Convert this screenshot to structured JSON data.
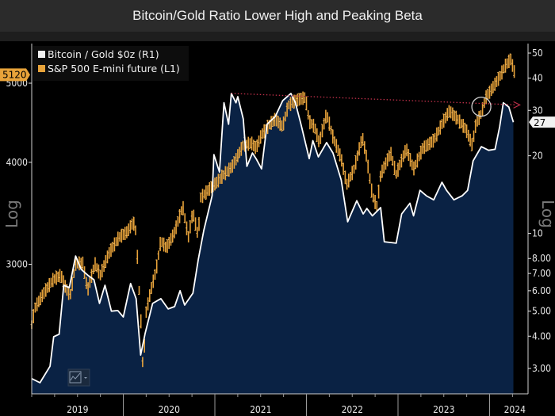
{
  "title": "Bitcoin/Gold Ratio Lower High and Peaking Beta",
  "chart_data": {
    "type": "line",
    "title": "Bitcoin/Gold Ratio Lower High and Peaking Beta",
    "xlabel": "",
    "x_ticks": [
      "2019",
      "2020",
      "2021",
      "2022",
      "2023",
      "2024"
    ],
    "xlim": [
      2019.0,
      2024.33
    ],
    "left_axis": {
      "label": "Log",
      "scale": "log",
      "ticks": [
        "3000",
        "4000",
        "5000"
      ],
      "tick_values": [
        3000,
        4000,
        5000
      ],
      "last_value_tag": "5120"
    },
    "right_axis": {
      "label": "Log",
      "scale": "log",
      "ticks": [
        "3.00",
        "4.00",
        "5.00",
        "6.00",
        "7.00",
        "8.00",
        "10",
        "20",
        "30",
        "40",
        "50"
      ],
      "tick_values": [
        3,
        4,
        5,
        6,
        7,
        8,
        10,
        20,
        30,
        40,
        50
      ],
      "last_value_tag": "27"
    },
    "legend": {
      "position": "top-left",
      "entries": [
        {
          "label": "Bitcoin / Gold $0z (R1)",
          "color": "#ffffff"
        },
        {
          "label": "S&P 500 E-mini future (L1)",
          "color": "#e8a33a"
        }
      ]
    },
    "series": [
      {
        "name": "Bitcoin / Gold $0z (R1)",
        "axis": "right",
        "color": "#ffffff",
        "fill": "#0a2244",
        "points": [
          [
            2019.0,
            2.74
          ],
          [
            2019.09,
            2.64
          ],
          [
            2019.2,
            3.06
          ],
          [
            2019.24,
            3.98
          ],
          [
            2019.3,
            4.07
          ],
          [
            2019.35,
            6.3
          ],
          [
            2019.41,
            6.17
          ],
          [
            2019.48,
            8.18
          ],
          [
            2019.54,
            7.26
          ],
          [
            2019.61,
            6.9
          ],
          [
            2019.68,
            6.62
          ],
          [
            2019.74,
            5.36
          ],
          [
            2019.8,
            6.3
          ],
          [
            2019.87,
            5.0
          ],
          [
            2019.94,
            5.03
          ],
          [
            2020.0,
            4.75
          ],
          [
            2020.08,
            6.4
          ],
          [
            2020.14,
            5.59
          ],
          [
            2020.19,
            3.38
          ],
          [
            2020.24,
            4.12
          ],
          [
            2020.32,
            5.36
          ],
          [
            2020.41,
            5.59
          ],
          [
            2020.49,
            5.1
          ],
          [
            2020.56,
            5.21
          ],
          [
            2020.62,
            6.0
          ],
          [
            2020.67,
            5.28
          ],
          [
            2020.76,
            5.87
          ],
          [
            2020.82,
            7.96
          ],
          [
            2020.88,
            10.3
          ],
          [
            2020.97,
            14.0
          ],
          [
            2020.99,
            20.2
          ],
          [
            2021.05,
            17.3
          ],
          [
            2021.1,
            32.1
          ],
          [
            2021.15,
            26.5
          ],
          [
            2021.18,
            34.9
          ],
          [
            2021.23,
            32.1
          ],
          [
            2021.25,
            33.9
          ],
          [
            2021.31,
            27.8
          ],
          [
            2021.35,
            18.2
          ],
          [
            2021.41,
            20.5
          ],
          [
            2021.45,
            19.5
          ],
          [
            2021.51,
            17.8
          ],
          [
            2021.57,
            26.5
          ],
          [
            2021.66,
            28.4
          ],
          [
            2021.74,
            32.7
          ],
          [
            2021.83,
            34.9
          ],
          [
            2021.88,
            32.1
          ],
          [
            2021.94,
            26.5
          ],
          [
            2022.03,
            19.5
          ],
          [
            2022.07,
            22.9
          ],
          [
            2022.13,
            19.8
          ],
          [
            2022.22,
            22.5
          ],
          [
            2022.29,
            20.5
          ],
          [
            2022.38,
            16.1
          ],
          [
            2022.45,
            11.1
          ],
          [
            2022.55,
            13.4
          ],
          [
            2022.62,
            11.9
          ],
          [
            2022.66,
            12.5
          ],
          [
            2022.72,
            11.7
          ],
          [
            2022.81,
            12.6
          ],
          [
            2022.85,
            9.29
          ],
          [
            2022.98,
            9.17
          ],
          [
            2023.04,
            11.9
          ],
          [
            2023.13,
            13.1
          ],
          [
            2023.17,
            11.7
          ],
          [
            2023.24,
            14.7
          ],
          [
            2023.31,
            14.0
          ],
          [
            2023.39,
            13.5
          ],
          [
            2023.48,
            15.8
          ],
          [
            2023.53,
            14.7
          ],
          [
            2023.61,
            13.5
          ],
          [
            2023.7,
            14.0
          ],
          [
            2023.76,
            14.7
          ],
          [
            2023.82,
            19.1
          ],
          [
            2023.91,
            21.7
          ],
          [
            2023.99,
            21.0
          ],
          [
            2024.06,
            21.2
          ],
          [
            2024.11,
            25.9
          ],
          [
            2024.15,
            32.1
          ],
          [
            2024.21,
            30.9
          ],
          [
            2024.26,
            27
          ]
        ]
      },
      {
        "name": "S&P 500 E-mini future (L1)",
        "axis": "left",
        "color": "#e8a33a",
        "points": [
          [
            2019.0,
            2530
          ],
          [
            2019.04,
            2660
          ],
          [
            2019.15,
            2785
          ],
          [
            2019.23,
            2870
          ],
          [
            2019.32,
            2910
          ],
          [
            2019.37,
            2810
          ],
          [
            2019.42,
            2745
          ],
          [
            2019.48,
            3005
          ],
          [
            2019.56,
            3010
          ],
          [
            2019.61,
            2785
          ],
          [
            2019.69,
            3005
          ],
          [
            2019.75,
            2910
          ],
          [
            2019.84,
            3090
          ],
          [
            2019.95,
            3235
          ],
          [
            2020.04,
            3285
          ],
          [
            2020.11,
            3380
          ],
          [
            2020.14,
            3285
          ],
          [
            2020.17,
            2825
          ],
          [
            2020.19,
            2590
          ],
          [
            2020.22,
            2165
          ],
          [
            2020.24,
            2590
          ],
          [
            2020.3,
            2785
          ],
          [
            2020.36,
            2955
          ],
          [
            2020.41,
            3210
          ],
          [
            2020.47,
            3140
          ],
          [
            2020.56,
            3285
          ],
          [
            2020.65,
            3535
          ],
          [
            2020.71,
            3235
          ],
          [
            2020.76,
            3480
          ],
          [
            2020.82,
            3235
          ],
          [
            2020.84,
            3615
          ],
          [
            2020.93,
            3700
          ],
          [
            2021.02,
            3780
          ],
          [
            2021.1,
            3865
          ],
          [
            2021.19,
            3955
          ],
          [
            2021.25,
            4075
          ],
          [
            2021.31,
            4200
          ],
          [
            2021.4,
            4225
          ],
          [
            2021.45,
            4160
          ],
          [
            2021.51,
            4325
          ],
          [
            2021.6,
            4455
          ],
          [
            2021.66,
            4520
          ],
          [
            2021.74,
            4420
          ],
          [
            2021.8,
            4695
          ],
          [
            2021.88,
            4760
          ],
          [
            2021.99,
            4805
          ],
          [
            2022.03,
            4490
          ],
          [
            2022.09,
            4420
          ],
          [
            2022.14,
            4225
          ],
          [
            2022.22,
            4590
          ],
          [
            2022.29,
            4295
          ],
          [
            2022.38,
            4045
          ],
          [
            2022.44,
            3755
          ],
          [
            2022.52,
            3925
          ],
          [
            2022.61,
            4295
          ],
          [
            2022.66,
            4045
          ],
          [
            2022.72,
            3640
          ],
          [
            2022.77,
            3535
          ],
          [
            2022.81,
            3865
          ],
          [
            2022.92,
            4110
          ],
          [
            2022.98,
            3865
          ],
          [
            2023.09,
            4160
          ],
          [
            2023.17,
            3925
          ],
          [
            2023.27,
            4160
          ],
          [
            2023.39,
            4255
          ],
          [
            2023.48,
            4455
          ],
          [
            2023.56,
            4625
          ],
          [
            2023.65,
            4520
          ],
          [
            2023.74,
            4395
          ],
          [
            2023.81,
            4200
          ],
          [
            2023.85,
            4455
          ],
          [
            2023.91,
            4590
          ],
          [
            2023.96,
            4805
          ],
          [
            2024.02,
            4910
          ],
          [
            2024.11,
            5090
          ],
          [
            2024.17,
            5250
          ],
          [
            2024.23,
            5350
          ],
          [
            2024.28,
            5120
          ]
        ]
      }
    ],
    "annotations": [
      {
        "type": "dotted-trendline",
        "color": "#c0304a",
        "axis": "right",
        "from": [
          2021.18,
          34.9
        ],
        "to": [
          2024.33,
          31.5
        ]
      },
      {
        "type": "circle",
        "color": "#d0d0d0",
        "at": [
          2023.91,
          31
        ]
      }
    ]
  }
}
